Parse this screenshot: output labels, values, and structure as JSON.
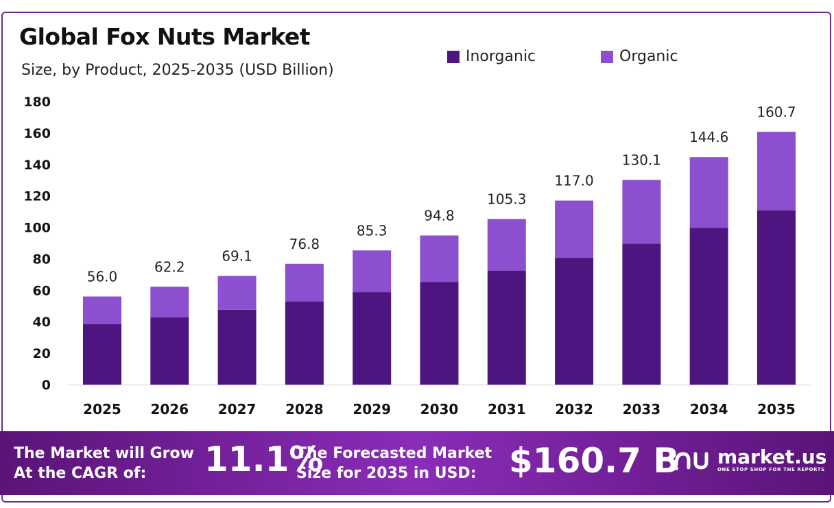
{
  "header": {
    "title": "Global Fox Nuts Market",
    "subtitle": "Size, by Product, 2025-2035 (USD Billion)"
  },
  "legend": {
    "items": [
      {
        "label": "Inorganic",
        "color": "#4d1580"
      },
      {
        "label": "Organic",
        "color": "#8b4fd0"
      }
    ]
  },
  "chart_data": {
    "type": "bar",
    "stacked": true,
    "categories": [
      "2025",
      "2026",
      "2027",
      "2028",
      "2029",
      "2030",
      "2031",
      "2032",
      "2033",
      "2034",
      "2035"
    ],
    "series": [
      {
        "name": "Inorganic",
        "color": "#4d1580",
        "values": [
          38.5,
          42.8,
          47.6,
          52.9,
          58.8,
          65.3,
          72.5,
          80.6,
          89.6,
          99.7,
          110.8
        ]
      },
      {
        "name": "Organic",
        "color": "#8b4fd0",
        "values": [
          17.5,
          19.4,
          21.5,
          23.9,
          26.5,
          29.5,
          32.8,
          36.4,
          40.5,
          44.9,
          49.9
        ]
      }
    ],
    "totals": [
      "56.0",
      "62.2",
      "69.1",
      "76.8",
      "85.3",
      "94.8",
      "105.3",
      "117.0",
      "130.1",
      "144.6",
      "160.7"
    ],
    "ylim": [
      0,
      180
    ],
    "yticks": [
      0,
      20,
      40,
      60,
      80,
      100,
      120,
      140,
      160,
      180
    ],
    "grid": false,
    "legend_position": "top-right"
  },
  "footer": {
    "cagr_label_line1": "The Market will Grow",
    "cagr_label_line2": "At the CAGR of:",
    "cagr_value": "11.1%",
    "forecast_label_line1": "The Forecasted Market",
    "forecast_label_line2": "Size for 2035 in USD:",
    "forecast_value": "$160.7 B",
    "brand_name": "market.us",
    "brand_tagline": "ONE STOP SHOP FOR THE REPORTS"
  }
}
